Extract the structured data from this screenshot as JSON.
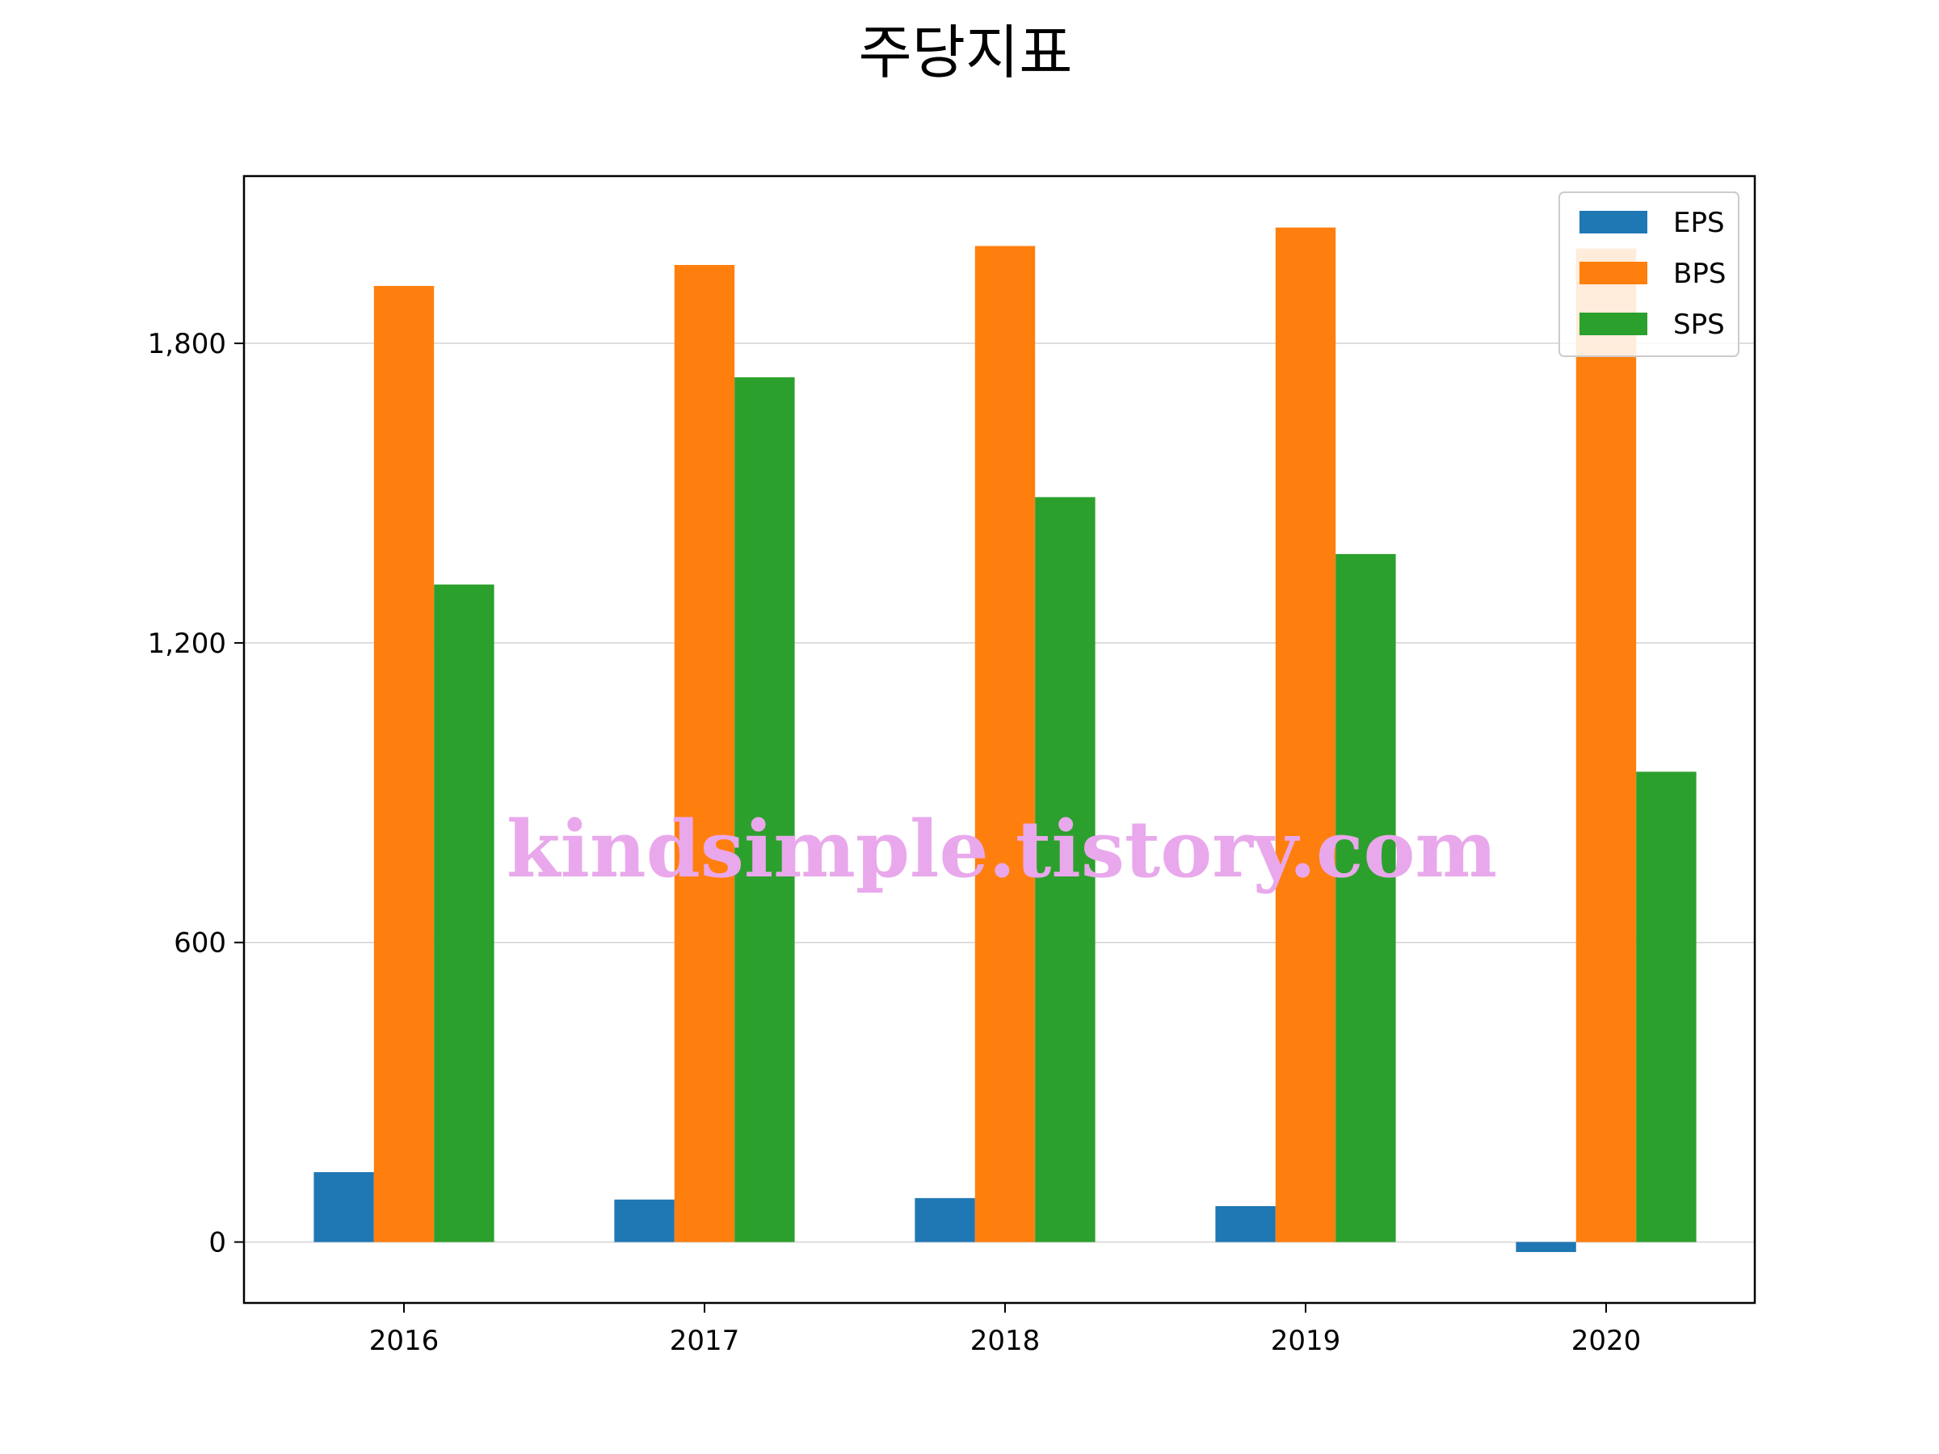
{
  "chart_data": {
    "type": "bar",
    "title": "주당지표",
    "xlabel": "",
    "ylabel": "",
    "categories": [
      "2016",
      "2017",
      "2018",
      "2019",
      "2020"
    ],
    "series": [
      {
        "name": "EPS",
        "color": "#1f77b4",
        "values": [
          140,
          85,
          88,
          72,
          -20
        ]
      },
      {
        "name": "BPS",
        "color": "#ff7f0e",
        "values": [
          1915,
          1957,
          1995,
          2032,
          1990
        ]
      },
      {
        "name": "SPS",
        "color": "#2ca02c",
        "values": [
          1317,
          1732,
          1492,
          1378,
          942
        ]
      }
    ],
    "yticks": [
      0,
      600,
      1200,
      1800
    ],
    "ytick_labels": [
      "0",
      "600",
      "1,200",
      "1,800"
    ],
    "ylim": [
      -122,
      2135
    ],
    "grid": "y",
    "legend_position": "top-right",
    "watermark": "kindsimple.tistory.com",
    "watermark_color": "#e9a8ec"
  }
}
